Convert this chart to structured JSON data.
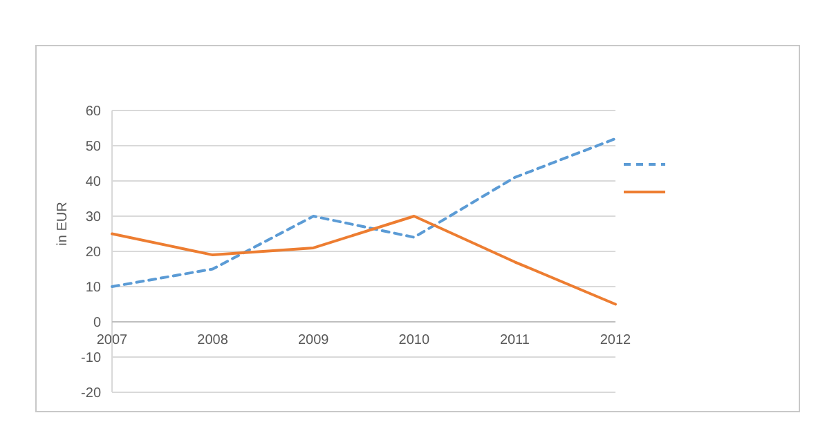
{
  "chart_data": {
    "type": "line",
    "ylabel": "in EUR",
    "x": [
      2007,
      2008,
      2009,
      2010,
      2011,
      2012
    ],
    "series": [
      {
        "color": "#5b9bd5",
        "line_style": "dashed",
        "values": [
          10,
          15,
          30,
          24,
          41,
          52
        ]
      },
      {
        "color": "#ed7d31",
        "line_style": "solid",
        "values": [
          25,
          19,
          21,
          30,
          17,
          5
        ]
      }
    ],
    "xlim": [
      2007,
      2012
    ],
    "xticks": [
      2007,
      2008,
      2009,
      2010,
      2011,
      2012
    ],
    "ylim": [
      -20,
      60
    ],
    "yticks": [
      -20,
      -10,
      0,
      10,
      20,
      30,
      40,
      50,
      60
    ],
    "grid": "y",
    "marker": "none"
  }
}
